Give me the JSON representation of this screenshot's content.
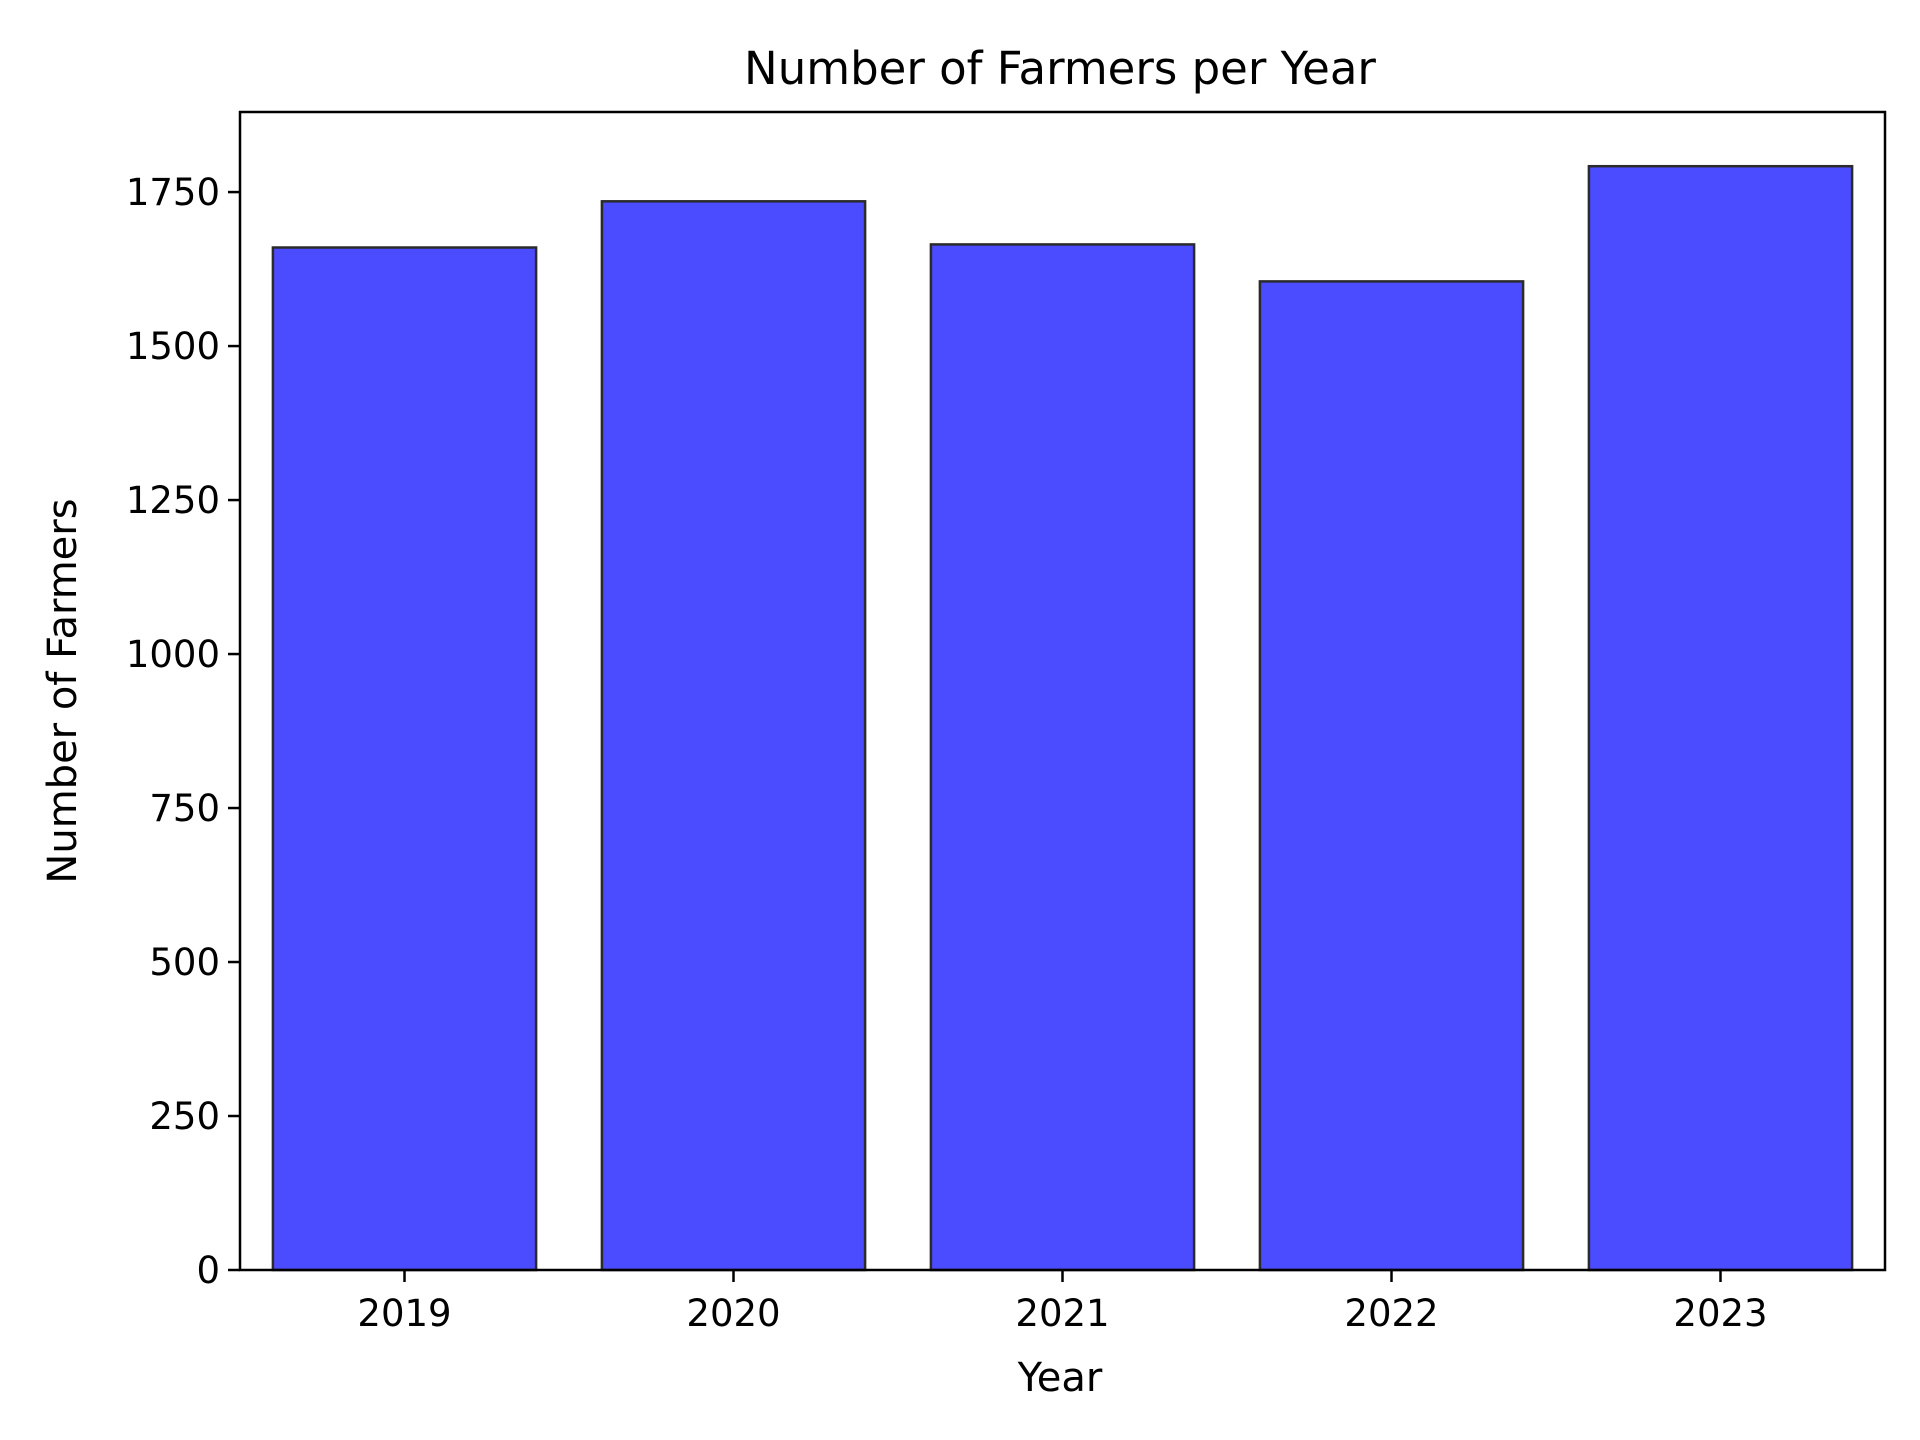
{
  "chart_data": {
    "type": "bar",
    "title": "Number of Farmers per Year",
    "xlabel": "Year",
    "ylabel": "Number of Farmers",
    "categories": [
      "2019",
      "2020",
      "2021",
      "2022",
      "2023"
    ],
    "values": [
      1660,
      1735,
      1665,
      1605,
      1792
    ],
    "ylim": [
      0,
      1880
    ],
    "yticks": [
      0,
      250,
      500,
      750,
      1000,
      1250,
      1500,
      1750
    ],
    "grid": false,
    "bar_color": "#4b4bff",
    "bar_edge_color": "#2b2b2b"
  }
}
